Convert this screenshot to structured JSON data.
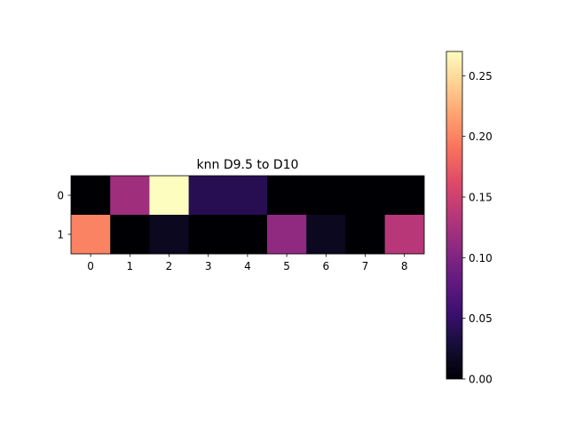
{
  "chart_data": {
    "type": "heatmap",
    "title": "knn D9.5 to D10",
    "colormap": "magma",
    "x_ticks": [
      "0",
      "1",
      "2",
      "3",
      "4",
      "5",
      "6",
      "7",
      "8"
    ],
    "y_ticks": [
      "0",
      "1"
    ],
    "values": [
      [
        0.0,
        0.12,
        0.27,
        0.04,
        0.04,
        0.0,
        0.0,
        0.0,
        0.0
      ],
      [
        0.2,
        0.0,
        0.015,
        0.0,
        0.0,
        0.11,
        0.015,
        0.0,
        0.135
      ]
    ],
    "colorbar": {
      "min": 0.0,
      "max": 0.27,
      "ticks": [
        "0.00",
        "0.05",
        "0.10",
        "0.15",
        "0.20",
        "0.25"
      ],
      "tick_values": [
        0.0,
        0.05,
        0.1,
        0.15,
        0.2,
        0.25
      ]
    }
  }
}
